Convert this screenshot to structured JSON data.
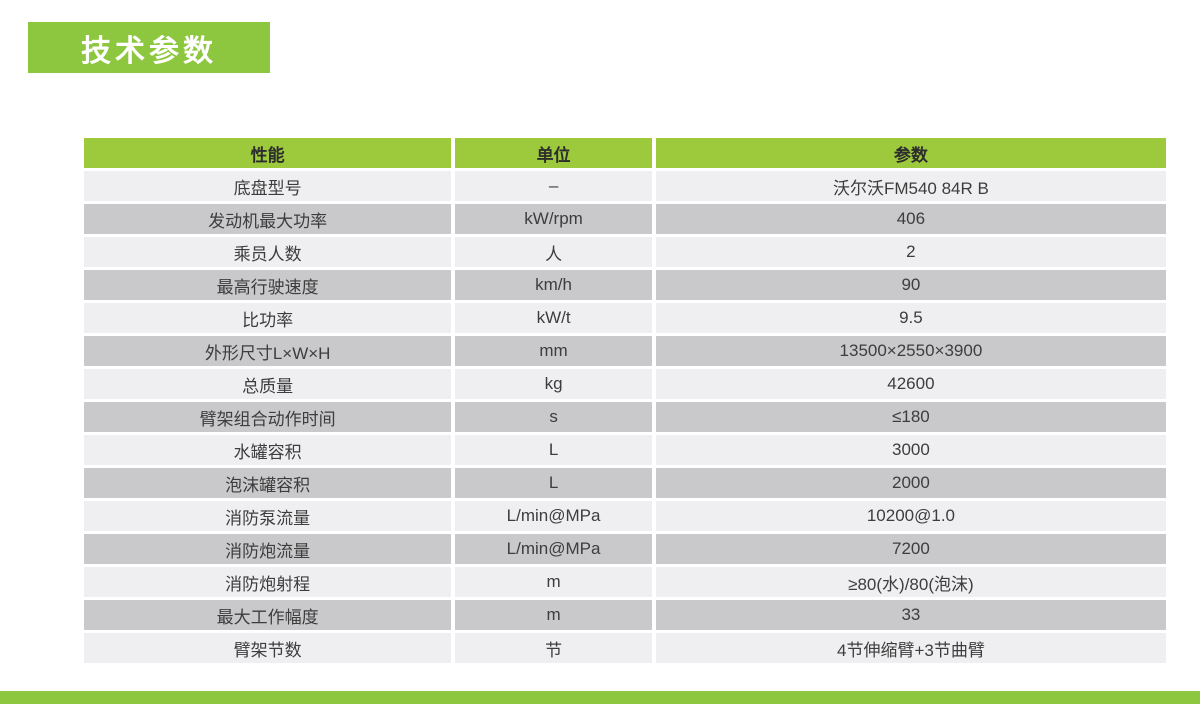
{
  "title_badge": {
    "label": "技术参数",
    "background": "#8DC63F",
    "text_color": "#ffffff"
  },
  "colors": {
    "header_green": "#9DC93D",
    "row_light": "#EFEFF1",
    "row_dark": "#C9C9CB",
    "footer_green": "#8DC63F"
  },
  "table": {
    "header": {
      "performance": "性能",
      "unit": "单位",
      "parameter": "参数"
    },
    "rows": [
      {
        "name": "底盘型号",
        "unit": "–",
        "value": "沃尔沃FM540 84R B"
      },
      {
        "name": "发动机最大功率",
        "unit": "kW/rpm",
        "value": "406"
      },
      {
        "name": "乘员人数",
        "unit": "人",
        "value": "2"
      },
      {
        "name": "最高行驶速度",
        "unit": "km/h",
        "value": "90"
      },
      {
        "name": "比功率",
        "unit": "kW/t",
        "value": "9.5"
      },
      {
        "name": "外形尺寸L×W×H",
        "unit": "mm",
        "value": "13500×2550×3900"
      },
      {
        "name": "总质量",
        "unit": "kg",
        "value": "42600"
      },
      {
        "name": "臂架组合动作时间",
        "unit": "s",
        "value": "≤180"
      },
      {
        "name": "水罐容积",
        "unit": "L",
        "value": "3000"
      },
      {
        "name": "泡沫罐容积",
        "unit": "L",
        "value": "2000"
      },
      {
        "name": "消防泵流量",
        "unit": "L/min@MPa",
        "value": "10200@1.0"
      },
      {
        "name": "消防炮流量",
        "unit": "L/min@MPa",
        "value": "7200"
      },
      {
        "name": "消防炮射程",
        "unit": "m",
        "value": "≥80(水)/80(泡沫)"
      },
      {
        "name": "最大工作幅度",
        "unit": "m",
        "value": "33"
      },
      {
        "name": "臂架节数",
        "unit": "节",
        "value": "4节伸缩臂+3节曲臂"
      }
    ]
  }
}
